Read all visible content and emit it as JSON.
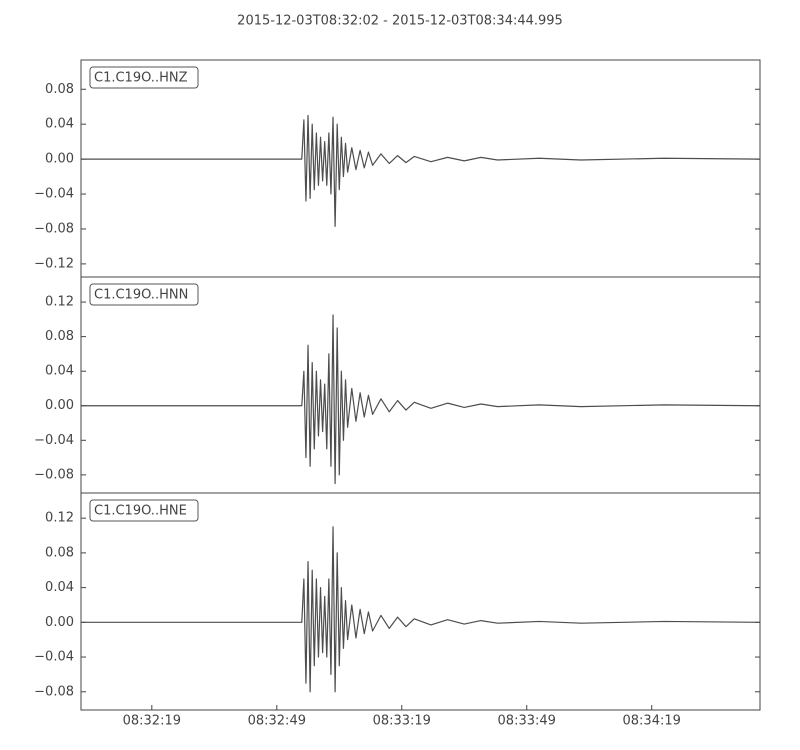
{
  "chart_data": [
    {
      "type": "line",
      "title": "2015-12-03T08:32:02  -  2015-12-03T08:34:44.995",
      "x": [
        0,
        20,
        40,
        52,
        53,
        53.5,
        54,
        54.5,
        55,
        55.5,
        56,
        56.5,
        57,
        57.5,
        58,
        58.5,
        59,
        59.5,
        60,
        60.5,
        61,
        61.5,
        62,
        62.5,
        63,
        63.5,
        64,
        65,
        66,
        67,
        68,
        69,
        70,
        72,
        74,
        76,
        78,
        80,
        84,
        88,
        92,
        96,
        100,
        110,
        120,
        140,
        162.995
      ],
      "series": [
        {
          "name": "C1.C19O..HNZ",
          "color": "#4d4d4d",
          "values": [
            0,
            0,
            0,
            0,
            0,
            0.045,
            -0.048,
            0.05,
            -0.045,
            0.04,
            -0.035,
            0.03,
            -0.03,
            0.025,
            -0.025,
            0.02,
            -0.03,
            0.03,
            -0.04,
            0.048,
            -0.077,
            0.04,
            -0.035,
            0.025,
            -0.02,
            0.018,
            -0.015,
            0.013,
            -0.012,
            0.01,
            -0.01,
            0.008,
            -0.007,
            0.006,
            -0.005,
            0.004,
            -0.004,
            0.003,
            -0.003,
            0.002,
            -0.002,
            0.002,
            -0.001,
            0.001,
            -0.001,
            0.001,
            0
          ]
        }
      ],
      "xlim": [
        0,
        162.995
      ],
      "ylim": [
        -0.135,
        0.1135
      ],
      "yticks": [
        {
          "value": 0.08,
          "label": "0.08"
        },
        {
          "value": 0.04,
          "label": "0.04"
        },
        {
          "value": 0,
          "label": "0.00"
        },
        {
          "value": -0.04,
          "label": "−0.04"
        },
        {
          "value": -0.08,
          "label": "−0.08"
        },
        {
          "value": -0.12,
          "label": "−0.12"
        }
      ]
    },
    {
      "type": "line",
      "x": [
        0,
        20,
        40,
        52,
        53,
        53.5,
        54,
        54.5,
        55,
        55.5,
        56,
        56.5,
        57,
        57.5,
        58,
        58.5,
        59,
        59.5,
        60,
        60.5,
        61,
        61.5,
        62,
        62.5,
        63,
        63.5,
        64,
        65,
        66,
        67,
        68,
        69,
        70,
        72,
        74,
        76,
        78,
        80,
        84,
        88,
        92,
        96,
        100,
        110,
        120,
        140,
        162.995
      ],
      "series": [
        {
          "name": "C1.C19O..HNN",
          "color": "#4d4d4d",
          "values": [
            0,
            0,
            0,
            0,
            0,
            0.04,
            -0.06,
            0.07,
            -0.07,
            0.05,
            -0.05,
            0.04,
            -0.035,
            0.03,
            -0.03,
            0.025,
            -0.05,
            0.06,
            -0.07,
            0.105,
            -0.09,
            0.09,
            -0.08,
            0.04,
            -0.04,
            0.03,
            -0.025,
            0.02,
            -0.018,
            0.015,
            -0.013,
            0.012,
            -0.01,
            0.008,
            -0.007,
            0.006,
            -0.005,
            0.004,
            -0.003,
            0.003,
            -0.002,
            0.002,
            -0.001,
            0.001,
            -0.001,
            0.001,
            0
          ]
        }
      ],
      "xlim": [
        0,
        162.995
      ],
      "ylim": [
        -0.101,
        0.149
      ],
      "yticks": [
        {
          "value": 0.12,
          "label": "0.12"
        },
        {
          "value": 0.08,
          "label": "0.08"
        },
        {
          "value": 0.04,
          "label": "0.04"
        },
        {
          "value": 0,
          "label": "0.00"
        },
        {
          "value": -0.04,
          "label": "−0.04"
        },
        {
          "value": -0.08,
          "label": "−0.08"
        }
      ]
    },
    {
      "type": "line",
      "x": [
        0,
        20,
        40,
        52,
        53,
        53.5,
        54,
        54.5,
        55,
        55.5,
        56,
        56.5,
        57,
        57.5,
        58,
        58.5,
        59,
        59.5,
        60,
        60.5,
        61,
        61.5,
        62,
        62.5,
        63,
        63.5,
        64,
        65,
        66,
        67,
        68,
        69,
        70,
        72,
        74,
        76,
        78,
        80,
        84,
        88,
        92,
        96,
        100,
        110,
        120,
        140,
        162.995
      ],
      "series": [
        {
          "name": "C1.C19O..HNE",
          "color": "#4d4d4d",
          "values": [
            0,
            0,
            0,
            0,
            0,
            0.05,
            -0.07,
            0.07,
            -0.08,
            0.06,
            -0.05,
            0.05,
            -0.04,
            0.04,
            -0.035,
            0.03,
            -0.04,
            0.05,
            -0.06,
            0.11,
            -0.08,
            0.08,
            -0.05,
            0.04,
            -0.03,
            0.025,
            -0.02,
            0.02,
            -0.018,
            0.015,
            -0.013,
            0.012,
            -0.01,
            0.008,
            -0.007,
            0.006,
            -0.005,
            0.004,
            -0.003,
            0.003,
            -0.002,
            0.002,
            -0.001,
            0.001,
            -0.001,
            0.001,
            0
          ]
        }
      ],
      "xlim": [
        0,
        162.995
      ],
      "ylim": [
        -0.101,
        0.149
      ],
      "yticks": [
        {
          "value": 0.12,
          "label": "0.12"
        },
        {
          "value": 0.08,
          "label": "0.08"
        },
        {
          "value": 0.04,
          "label": "0.04"
        },
        {
          "value": 0,
          "label": "0.00"
        },
        {
          "value": -0.04,
          "label": "−0.04"
        },
        {
          "value": -0.08,
          "label": "−0.08"
        }
      ],
      "xticks": [
        {
          "value": 17,
          "label": "08:32:19"
        },
        {
          "value": 47,
          "label": "08:32:49"
        },
        {
          "value": 77,
          "label": "08:33:19"
        },
        {
          "value": 107,
          "label": "08:33:49"
        },
        {
          "value": 137,
          "label": "08:34:19"
        }
      ]
    }
  ]
}
